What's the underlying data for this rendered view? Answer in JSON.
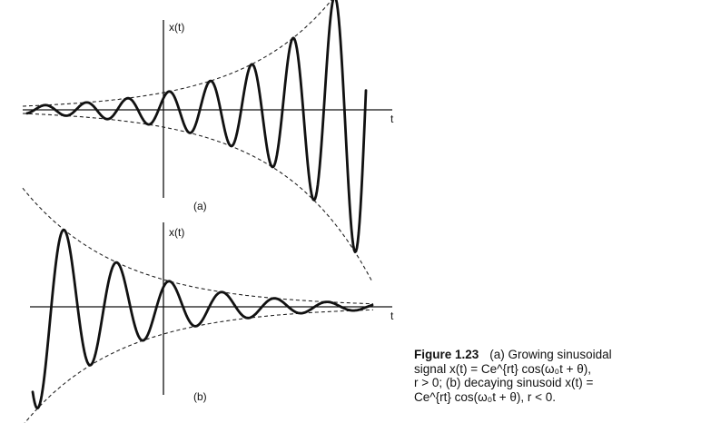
{
  "panel_a": {
    "y_axis_label": "x(t)",
    "x_axis_label": "t",
    "panel_label": "(a)"
  },
  "panel_b": {
    "y_axis_label": "x(t)",
    "x_axis_label": "t",
    "panel_label": "(b)"
  },
  "caption": {
    "figure_number": "Figure 1.23",
    "lines": [
      "(a) Growing sinusoidal",
      "signal x(t) = Ce^{rt} cos(ω₀t + θ),",
      "r > 0; (b) decaying sinusoid x(t) =",
      "Ce^{rt} cos(ω₀t + θ), r < 0."
    ]
  }
}
